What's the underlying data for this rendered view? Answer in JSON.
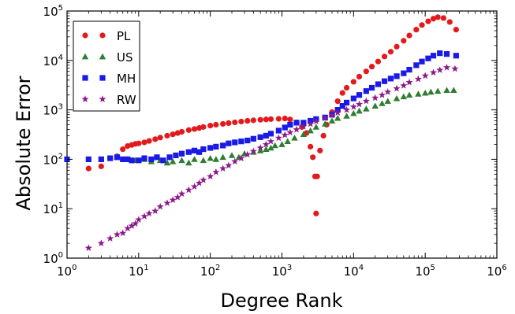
{
  "chart_data": {
    "type": "scatter",
    "title": "",
    "xlabel": "Degree Rank",
    "ylabel": "Absolute Error",
    "xscale": "log",
    "yscale": "log",
    "xlim": [
      1,
      1000000
    ],
    "ylim": [
      1,
      100000
    ],
    "xticks": [
      {
        "base": "10",
        "exp": "0"
      },
      {
        "base": "10",
        "exp": "1"
      },
      {
        "base": "10",
        "exp": "2"
      },
      {
        "base": "10",
        "exp": "3"
      },
      {
        "base": "10",
        "exp": "4"
      },
      {
        "base": "10",
        "exp": "5"
      },
      {
        "base": "10",
        "exp": "6"
      }
    ],
    "yticks": [
      {
        "base": "10",
        "exp": "0"
      },
      {
        "base": "10",
        "exp": "1"
      },
      {
        "base": "10",
        "exp": "2"
      },
      {
        "base": "10",
        "exp": "3"
      },
      {
        "base": "10",
        "exp": "4"
      },
      {
        "base": "10",
        "exp": "5"
      }
    ],
    "legend_position": "top-left",
    "series": [
      {
        "name": "PL",
        "marker": "circle",
        "color": "#e31a1c",
        "points": [
          [
            2,
            65
          ],
          [
            3,
            72
          ],
          [
            4,
            105
          ],
          [
            5,
            115
          ],
          [
            6,
            160
          ],
          [
            7,
            185
          ],
          [
            8,
            195
          ],
          [
            9,
            205
          ],
          [
            10,
            210
          ],
          [
            12,
            220
          ],
          [
            14,
            235
          ],
          [
            17,
            255
          ],
          [
            20,
            275
          ],
          [
            25,
            300
          ],
          [
            30,
            320
          ],
          [
            35,
            340
          ],
          [
            40,
            360
          ],
          [
            50,
            390
          ],
          [
            60,
            410
          ],
          [
            70,
            430
          ],
          [
            80,
            450
          ],
          [
            100,
            480
          ],
          [
            120,
            500
          ],
          [
            150,
            520
          ],
          [
            180,
            540
          ],
          [
            220,
            560
          ],
          [
            270,
            580
          ],
          [
            330,
            600
          ],
          [
            400,
            615
          ],
          [
            500,
            630
          ],
          [
            600,
            640
          ],
          [
            700,
            650
          ],
          [
            900,
            660
          ],
          [
            1100,
            670
          ],
          [
            1300,
            640
          ],
          [
            1600,
            560
          ],
          [
            1900,
            450
          ],
          [
            2200,
            340
          ],
          [
            2500,
            180
          ],
          [
            2700,
            110
          ],
          [
            2900,
            45
          ],
          [
            3000,
            8
          ],
          [
            3100,
            45
          ],
          [
            3400,
            150
          ],
          [
            3800,
            300
          ],
          [
            4200,
            500
          ],
          [
            5000,
            900
          ],
          [
            6000,
            1500
          ],
          [
            7000,
            2200
          ],
          [
            8000,
            2800
          ],
          [
            10000,
            3700
          ],
          [
            12000,
            4700
          ],
          [
            15000,
            6000
          ],
          [
            18000,
            7500
          ],
          [
            22000,
            9500
          ],
          [
            27000,
            12000
          ],
          [
            33000,
            15000
          ],
          [
            40000,
            19000
          ],
          [
            50000,
            25000
          ],
          [
            60000,
            32000
          ],
          [
            75000,
            42000
          ],
          [
            90000,
            52000
          ],
          [
            110000,
            62000
          ],
          [
            130000,
            70000
          ],
          [
            150000,
            75000
          ],
          [
            180000,
            72000
          ],
          [
            220000,
            60000
          ],
          [
            270000,
            42000
          ]
        ]
      },
      {
        "name": "US",
        "marker": "triangle",
        "color": "#2e7d32",
        "points": [
          [
            5,
            110
          ],
          [
            7,
            100
          ],
          [
            9,
            95
          ],
          [
            12,
            100
          ],
          [
            15,
            90
          ],
          [
            20,
            95
          ],
          [
            25,
            85
          ],
          [
            30,
            90
          ],
          [
            40,
            95
          ],
          [
            50,
            85
          ],
          [
            60,
            100
          ],
          [
            80,
            95
          ],
          [
            100,
            105
          ],
          [
            120,
            100
          ],
          [
            150,
            110
          ],
          [
            200,
            120
          ],
          [
            250,
            110
          ],
          [
            300,
            130
          ],
          [
            400,
            140
          ],
          [
            500,
            150
          ],
          [
            600,
            160
          ],
          [
            700,
            170
          ],
          [
            800,
            190
          ],
          [
            1000,
            200
          ],
          [
            1200,
            230
          ],
          [
            1500,
            270
          ],
          [
            2000,
            320
          ],
          [
            2500,
            380
          ],
          [
            3000,
            450
          ],
          [
            4000,
            520
          ],
          [
            5000,
            600
          ],
          [
            6000,
            680
          ],
          [
            8000,
            750
          ],
          [
            10000,
            850
          ],
          [
            12000,
            950
          ],
          [
            15000,
            1050
          ],
          [
            20000,
            1200
          ],
          [
            25000,
            1350
          ],
          [
            30000,
            1500
          ],
          [
            40000,
            1700
          ],
          [
            50000,
            1850
          ],
          [
            60000,
            2000
          ],
          [
            80000,
            2100
          ],
          [
            100000,
            2200
          ],
          [
            120000,
            2300
          ],
          [
            150000,
            2400
          ],
          [
            200000,
            2500
          ],
          [
            250000,
            2500
          ]
        ]
      },
      {
        "name": "MH",
        "marker": "square",
        "color": "#1a1ae6",
        "points": [
          [
            1,
            100
          ],
          [
            2,
            100
          ],
          [
            3,
            100
          ],
          [
            4,
            105
          ],
          [
            5,
            110
          ],
          [
            6,
            100
          ],
          [
            7,
            100
          ],
          [
            8,
            95
          ],
          [
            10,
            95
          ],
          [
            12,
            105
          ],
          [
            15,
            100
          ],
          [
            18,
            110
          ],
          [
            22,
            95
          ],
          [
            27,
            110
          ],
          [
            33,
            120
          ],
          [
            40,
            130
          ],
          [
            50,
            140
          ],
          [
            60,
            150
          ],
          [
            70,
            140
          ],
          [
            80,
            160
          ],
          [
            100,
            170
          ],
          [
            120,
            180
          ],
          [
            150,
            190
          ],
          [
            180,
            210
          ],
          [
            220,
            220
          ],
          [
            270,
            230
          ],
          [
            330,
            240
          ],
          [
            400,
            260
          ],
          [
            500,
            280
          ],
          [
            600,
            300
          ],
          [
            700,
            330
          ],
          [
            900,
            380
          ],
          [
            1100,
            440
          ],
          [
            1300,
            500
          ],
          [
            1600,
            550
          ],
          [
            2000,
            550
          ],
          [
            2500,
            600
          ],
          [
            3000,
            650
          ],
          [
            4000,
            700
          ],
          [
            5000,
            800
          ],
          [
            6000,
            1000
          ],
          [
            7000,
            1200
          ],
          [
            8000,
            1400
          ],
          [
            10000,
            1700
          ],
          [
            12000,
            2000
          ],
          [
            15000,
            2400
          ],
          [
            18000,
            2800
          ],
          [
            22000,
            3300
          ],
          [
            27000,
            3800
          ],
          [
            33000,
            4300
          ],
          [
            40000,
            4800
          ],
          [
            50000,
            5500
          ],
          [
            60000,
            6500
          ],
          [
            75000,
            8000
          ],
          [
            90000,
            9500
          ],
          [
            110000,
            11000
          ],
          [
            130000,
            12500
          ],
          [
            160000,
            14000
          ],
          [
            200000,
            13500
          ],
          [
            270000,
            12500
          ]
        ]
      },
      {
        "name": "RW",
        "marker": "star",
        "color": "#8b1a8b",
        "points": [
          [
            2,
            1.6
          ],
          [
            3,
            2
          ],
          [
            4,
            2.5
          ],
          [
            5,
            3
          ],
          [
            6,
            3.2
          ],
          [
            7,
            4
          ],
          [
            8,
            4.5
          ],
          [
            9,
            5
          ],
          [
            10,
            6
          ],
          [
            12,
            7
          ],
          [
            14,
            8
          ],
          [
            17,
            9
          ],
          [
            20,
            11
          ],
          [
            25,
            13
          ],
          [
            30,
            15
          ],
          [
            35,
            17
          ],
          [
            40,
            20
          ],
          [
            50,
            24
          ],
          [
            60,
            28
          ],
          [
            70,
            33
          ],
          [
            80,
            38
          ],
          [
            100,
            45
          ],
          [
            120,
            55
          ],
          [
            150,
            65
          ],
          [
            180,
            75
          ],
          [
            220,
            90
          ],
          [
            270,
            105
          ],
          [
            330,
            125
          ],
          [
            400,
            145
          ],
          [
            500,
            170
          ],
          [
            600,
            200
          ],
          [
            700,
            230
          ],
          [
            900,
            270
          ],
          [
            1100,
            310
          ],
          [
            1300,
            350
          ],
          [
            1600,
            400
          ],
          [
            2000,
            460
          ],
          [
            2500,
            520
          ],
          [
            3000,
            590
          ],
          [
            4000,
            680
          ],
          [
            5000,
            780
          ],
          [
            6000,
            880
          ],
          [
            8000,
            1000
          ],
          [
            10000,
            1150
          ],
          [
            12000,
            1300
          ],
          [
            15000,
            1500
          ],
          [
            20000,
            1750
          ],
          [
            25000,
            2000
          ],
          [
            30000,
            2300
          ],
          [
            40000,
            2700
          ],
          [
            50000,
            3100
          ],
          [
            60000,
            3600
          ],
          [
            80000,
            4200
          ],
          [
            100000,
            4900
          ],
          [
            130000,
            5700
          ],
          [
            160000,
            6400
          ],
          [
            200000,
            7200
          ],
          [
            260000,
            6800
          ]
        ]
      }
    ]
  }
}
